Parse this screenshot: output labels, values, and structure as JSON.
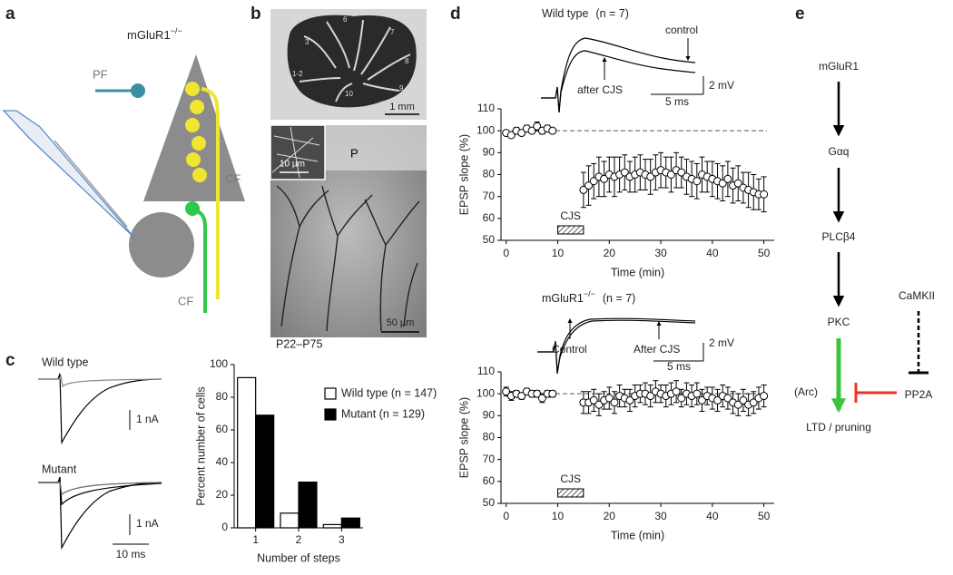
{
  "panel_labels": [
    "a",
    "b",
    "c",
    "d",
    "e"
  ],
  "panel_a": {
    "gene": "mGluR1",
    "genotype": "−/−",
    "pf": "PF",
    "cf_upper": "CF",
    "cf_lower": "CF"
  },
  "panel_b": {
    "scale_top": "1 mm",
    "lobules": [
      "4-5",
      "6",
      "7",
      "8",
      "9",
      "10",
      "1-2",
      "3"
    ],
    "inset_scale": "10 µm",
    "layer": "P",
    "scale_bottom": "50 µm"
  },
  "panel_c": {
    "trace_wt": "Wild type",
    "trace_mutant": "Mutant",
    "scale_na_top": "1 nA",
    "scale_na_bottom": "1 nA",
    "scale_ms": "10 ms"
  },
  "panel_d": {
    "top": {
      "label": "Wild type",
      "n": "(n = 7)",
      "control": "control",
      "after": "after CJS",
      "scale_mv": "2 mV",
      "scale_ms": "5 ms"
    },
    "bottom": {
      "gene": "mGluR1",
      "genotype": "−/−",
      "n": "(n = 7)",
      "control": "Control",
      "after": "After CJS",
      "scale_mv": "2 mV",
      "scale_ms": "5 ms"
    }
  },
  "panel_e": {
    "mglur1": "mGluR1",
    "gaq": "Gαq",
    "plcb4": "PLCβ4",
    "pkc": "PKC",
    "camkii": "CaMKII",
    "pp2a": "PP2A",
    "arc": "(Arc)",
    "ltd": "LTD / pruning"
  },
  "chart_data": [
    {
      "type": "bar",
      "title": "P22–P75",
      "x_label": "Number of steps",
      "y_label": "Percent number of cells",
      "categories": [
        "1",
        "2",
        "3"
      ],
      "series": [
        {
          "name": "Wild type (n = 147)",
          "color": "#ffffff",
          "values": [
            92,
            9,
            2
          ]
        },
        {
          "name": "Mutant (n = 129)",
          "color": "#000000",
          "values": [
            69,
            28,
            6
          ]
        }
      ],
      "ylim": [
        0,
        100
      ],
      "yticks": [
        0,
        20,
        40,
        60,
        80,
        100
      ]
    },
    {
      "type": "scatter",
      "x_label": "Time (min)",
      "y_label": "EPSP slope (%)",
      "x": [
        0,
        1,
        2,
        3,
        4,
        5,
        6,
        7,
        8,
        9,
        15,
        16,
        17,
        18,
        19,
        20,
        21,
        22,
        23,
        24,
        25,
        26,
        27,
        28,
        29,
        30,
        31,
        32,
        33,
        34,
        35,
        36,
        37,
        38,
        39,
        40,
        41,
        42,
        43,
        44,
        45,
        46,
        47,
        48,
        49,
        50
      ],
      "series": [
        {
          "color": "#ffffff",
          "values": [
            99,
            98,
            100,
            99,
            101,
            100,
            102,
            100,
            101,
            100,
            73,
            75,
            77,
            79,
            78,
            80,
            79,
            80,
            81,
            79,
            80,
            81,
            80,
            79,
            81,
            82,
            81,
            80,
            82,
            81,
            79,
            78,
            77,
            80,
            79,
            78,
            77,
            76,
            78,
            75,
            76,
            74,
            73,
            72,
            71,
            71
          ],
          "errors": [
            1,
            1,
            1.5,
            1,
            1.5,
            1,
            2,
            1.5,
            1.5,
            1,
            8,
            9,
            8,
            9,
            8,
            8,
            9,
            8,
            8,
            7,
            8,
            8,
            7,
            8,
            8,
            8,
            7,
            8,
            8,
            7,
            8,
            8,
            8,
            8,
            7,
            8,
            8,
            8,
            8,
            8,
            8,
            7,
            8,
            8,
            7,
            8
          ]
        }
      ],
      "reference_line": 100,
      "stimulus": {
        "label": "CJS",
        "x": [
          10,
          15
        ]
      },
      "xlim": [
        -1,
        52
      ],
      "xticks": [
        0,
        10,
        20,
        30,
        40,
        50
      ],
      "ylim": [
        50,
        110
      ],
      "yticks": [
        50,
        60,
        70,
        80,
        90,
        100,
        110
      ]
    },
    {
      "type": "scatter",
      "x_label": "Time (min)",
      "y_label": "EPSP slope (%)",
      "x": [
        0,
        1,
        2,
        3,
        4,
        5,
        6,
        7,
        8,
        9,
        15,
        16,
        17,
        18,
        19,
        20,
        21,
        22,
        23,
        24,
        25,
        26,
        27,
        28,
        29,
        30,
        31,
        32,
        33,
        34,
        35,
        36,
        37,
        38,
        39,
        40,
        41,
        42,
        43,
        44,
        45,
        46,
        47,
        48,
        49,
        50
      ],
      "series": [
        {
          "color": "#ffffff",
          "values": [
            101,
            99,
            100,
            99,
            101,
            100,
            100,
            98,
            100,
            100,
            96,
            96,
            97,
            95,
            97,
            98,
            96,
            99,
            98,
            97,
            99,
            100,
            100,
            99,
            101,
            100,
            99,
            100,
            101,
            98,
            100,
            99,
            100,
            97,
            99,
            98,
            97,
            99,
            98,
            96,
            95,
            97,
            95,
            96,
            98,
            99
          ],
          "errors": [
            2,
            2,
            1.5,
            1.5,
            1.5,
            1.5,
            1.5,
            2,
            1.5,
            1.5,
            5,
            5,
            5,
            5,
            4,
            5,
            5,
            5,
            4,
            5,
            5,
            4,
            5,
            5,
            5,
            4,
            5,
            5,
            5,
            4,
            5,
            5,
            5,
            5,
            4,
            5,
            5,
            5,
            5,
            5,
            5,
            5,
            5,
            5,
            5,
            5
          ]
        }
      ],
      "reference_line": 100,
      "stimulus": {
        "label": "CJS",
        "x": [
          10,
          15
        ]
      },
      "xlim": [
        -1,
        52
      ],
      "xticks": [
        0,
        10,
        20,
        30,
        40,
        50
      ],
      "ylim": [
        50,
        110
      ],
      "yticks": [
        50,
        60,
        70,
        80,
        90,
        100,
        110
      ]
    }
  ]
}
